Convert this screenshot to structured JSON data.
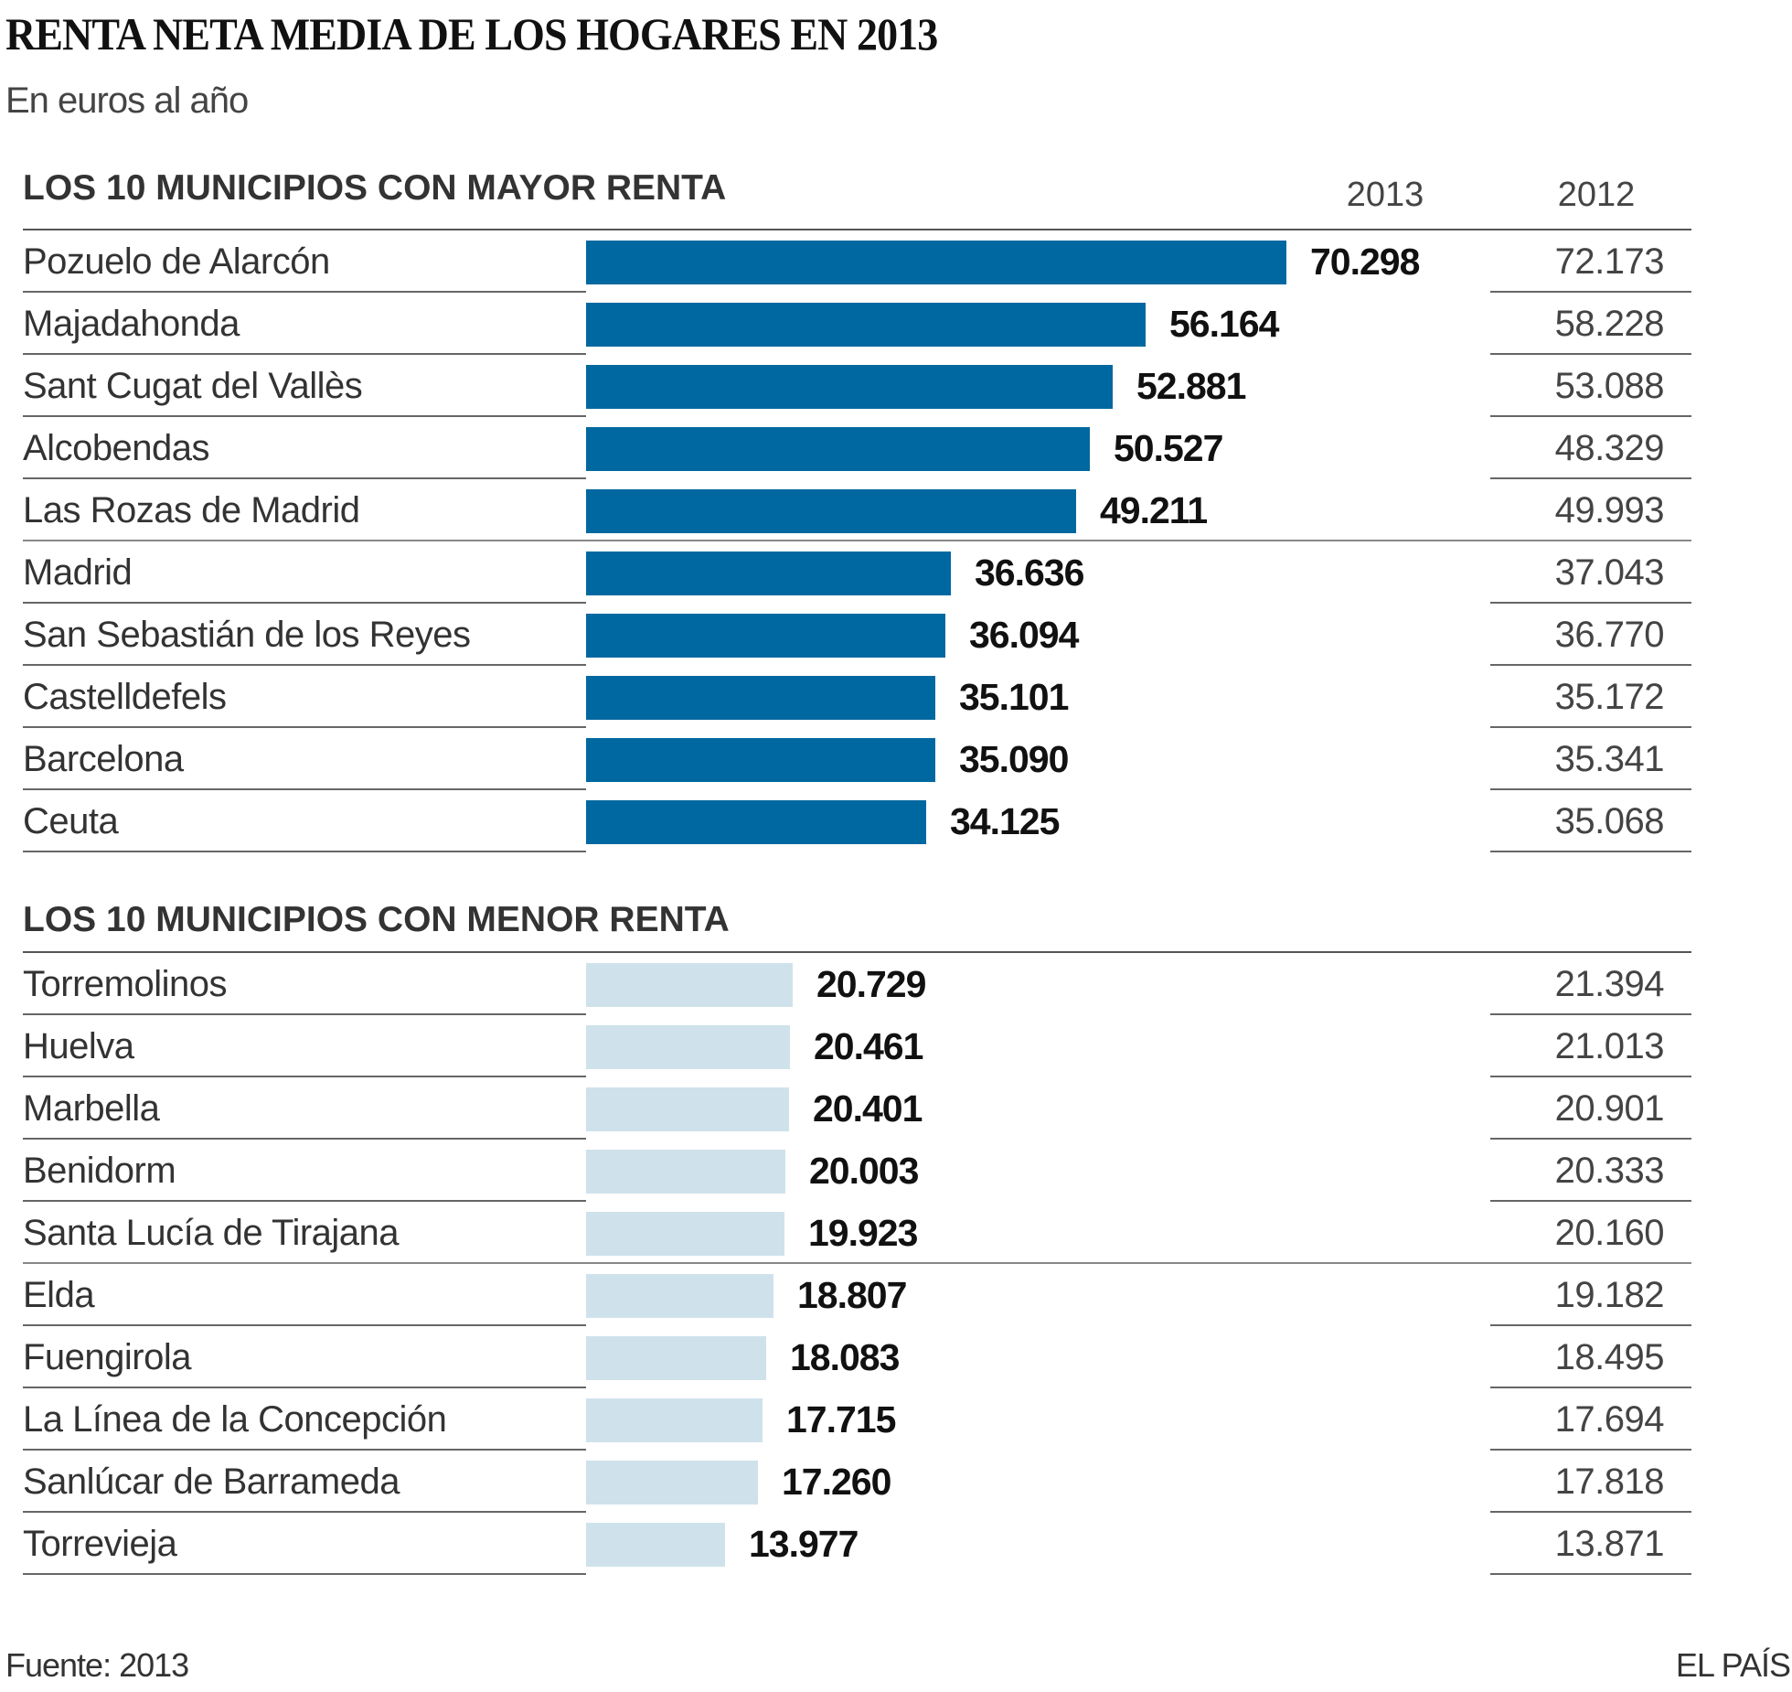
{
  "title": "RENTA NETA MEDIA DE LOS HOGARES EN 2013",
  "subtitle": "En euros al año",
  "source": "Fuente: 2013",
  "brand": "EL PAÍS",
  "colors": {
    "top": "#0068a0",
    "bottom": "#cfe2ec"
  },
  "chart_data": [
    {
      "type": "bar",
      "title": "LOS 10 MUNICIPIOS CON MAYOR RENTA",
      "columns": [
        "2013",
        "2012"
      ],
      "categories": [
        "Pozuelo de Alarcón",
        "Majadahonda",
        "Sant Cugat del Vallès",
        "Alcobendas",
        "Las Rozas de Madrid",
        "Madrid",
        "San Sebastián de los Reyes",
        "Castelldefels",
        "Barcelona",
        "Ceuta"
      ],
      "series": [
        {
          "name": "2013",
          "values": [
            70298,
            56164,
            52881,
            50527,
            49211,
            36636,
            36094,
            35101,
            35090,
            34125
          ],
          "labels": [
            "70.298",
            "56.164",
            "52.881",
            "50.527",
            "49.211",
            "36.636",
            "36.094",
            "35.101",
            "35.090",
            "34.125"
          ]
        },
        {
          "name": "2012",
          "values": [
            72173,
            58228,
            53088,
            48329,
            49993,
            37043,
            36770,
            35172,
            35341,
            35068
          ],
          "labels": [
            "72.173",
            "58.228",
            "53.088",
            "48.329",
            "49.993",
            "37.043",
            "36.770",
            "35.172",
            "35.341",
            "35.068"
          ]
        }
      ]
    },
    {
      "type": "bar",
      "title": "LOS 10 MUNICIPIOS CON MENOR RENTA",
      "categories": [
        "Torremolinos",
        "Huelva",
        "Marbella",
        "Benidorm",
        "Santa Lucía de Tirajana",
        "Elda",
        "Fuengirola",
        "La Línea de la Concepción",
        "Sanlúcar de Barrameda",
        "Torrevieja"
      ],
      "series": [
        {
          "name": "2013",
          "values": [
            20729,
            20461,
            20401,
            20003,
            19923,
            18807,
            18083,
            17715,
            17260,
            13977
          ],
          "labels": [
            "20.729",
            "20.461",
            "20.401",
            "20.003",
            "19.923",
            "18.807",
            "18.083",
            "17.715",
            "17.260",
            "13.977"
          ]
        },
        {
          "name": "2012",
          "values": [
            21394,
            21013,
            20901,
            20333,
            20160,
            19182,
            18495,
            17694,
            17818,
            13871
          ],
          "labels": [
            "21.394",
            "21.013",
            "20.901",
            "20.333",
            "20.160",
            "19.182",
            "18.495",
            "17.694",
            "17.818",
            "13.871"
          ]
        }
      ]
    }
  ]
}
